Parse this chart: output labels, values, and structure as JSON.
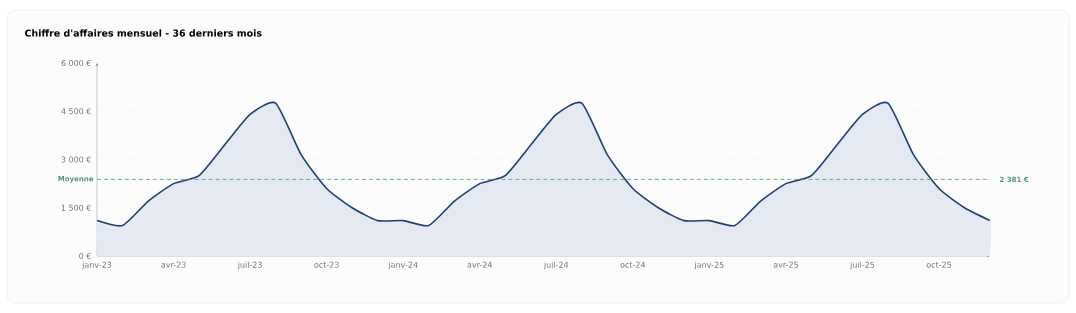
{
  "chart_data": {
    "type": "area",
    "title": "Chiffre d'affaires mensuel - 36 derniers mois",
    "x": [
      "2023-01",
      "2023-02",
      "2023-03",
      "2023-04",
      "2023-05",
      "2023-06",
      "2023-07",
      "2023-08",
      "2023-09",
      "2023-10",
      "2023-11",
      "2023-12",
      "2024-01",
      "2024-02",
      "2024-03",
      "2024-04",
      "2024-05",
      "2024-06",
      "2024-07",
      "2024-08",
      "2024-09",
      "2024-10",
      "2024-11",
      "2024-12",
      "2025-01",
      "2025-02",
      "2025-03",
      "2025-04",
      "2025-05",
      "2025-06",
      "2025-07",
      "2025-08",
      "2025-09",
      "2025-10",
      "2025-11",
      "2025-12"
    ],
    "series": [
      {
        "color": "#1e3f7a",
        "values": [
          1100,
          950,
          1700,
          2250,
          2500,
          3450,
          4400,
          4750,
          3150,
          2100,
          1500,
          1100,
          1100,
          950,
          1700,
          2250,
          2500,
          3450,
          4400,
          4750,
          3150,
          2100,
          1500,
          1100,
          1100,
          950,
          1700,
          2250,
          2500,
          3450,
          4400,
          4750,
          3150,
          2100,
          1500,
          1100
        ]
      }
    ],
    "xlim": [
      "2023-01",
      "2025-12"
    ],
    "xticks": [
      {
        "value": "2023-01",
        "label": "janv-23"
      },
      {
        "value": "2023-04",
        "label": "avr-23"
      },
      {
        "value": "2023-07",
        "label": "juil-23"
      },
      {
        "value": "2023-10",
        "label": "oct-23"
      },
      {
        "value": "2024-01",
        "label": "janv-24"
      },
      {
        "value": "2024-04",
        "label": "avr-24"
      },
      {
        "value": "2024-07",
        "label": "juil-24"
      },
      {
        "value": "2024-10",
        "label": "oct-24"
      },
      {
        "value": "2025-01",
        "label": "janv-25"
      },
      {
        "value": "2025-04",
        "label": "avr-25"
      },
      {
        "value": "2025-07",
        "label": "juil-25"
      },
      {
        "value": "2025-10",
        "label": "oct-25"
      }
    ],
    "ylim": [
      0,
      6000
    ],
    "yticks": [
      {
        "value": 0,
        "label": "0 €"
      },
      {
        "value": 1500,
        "label": "1 500 €"
      },
      {
        "value": 3000,
        "label": "3 000 €"
      },
      {
        "value": 4500,
        "label": "4 500 €"
      },
      {
        "value": 6000,
        "label": "6 000 €"
      }
    ],
    "grid": "y",
    "ref_lines": [
      {
        "axis": "y",
        "value": 2381,
        "label": "Moyenne",
        "color": "#4e9c72",
        "line_style": "dashed"
      }
    ],
    "annotations": [
      {
        "text": "2 381 €",
        "x": "2025-12",
        "y": 2381
      }
    ]
  }
}
